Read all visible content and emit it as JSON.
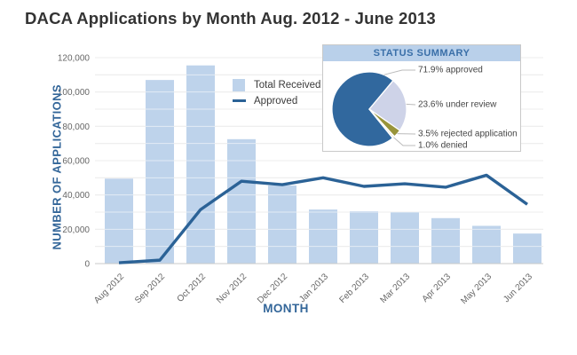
{
  "title": "DACA Applications by Month Aug. 2012 - June 2013",
  "colors": {
    "bar_fill": "#BED3EB",
    "line_stroke": "#2B6296",
    "grid_line": "#D8D8D8",
    "axis_baseline": "#C9C9C9",
    "tick_text": "#666666",
    "axis_title_text": "#336699",
    "title_text": "#333333",
    "inset_header_bg": "#B9D0EA",
    "inset_header_text": "#3A6FA8",
    "inset_border": "#C9C9C9",
    "leader_line": "#BBBBBB"
  },
  "chart_data": [
    {
      "type": "bar",
      "title": "DACA Applications by Month Aug. 2012 - June 2013",
      "categories": [
        "Aug 2012",
        "Sep 2012",
        "Oct 2012",
        "Nov 2012",
        "Dec 2012",
        "Jan 2013",
        "Feb 2013",
        "Mar 2013",
        "Apr 2013",
        "May 2013",
        "Jun 2013"
      ],
      "series": [
        {
          "name": "Total Received",
          "kind": "bar",
          "color": "#BED3EB",
          "values": [
            49500,
            107000,
            115500,
            72500,
            45500,
            31500,
            30500,
            30000,
            26500,
            22000,
            17500
          ]
        },
        {
          "name": "Approved",
          "kind": "line",
          "color": "#2B6296",
          "values": [
            500,
            2000,
            31500,
            48000,
            46000,
            50000,
            45000,
            46500,
            44500,
            51500,
            34500
          ]
        }
      ],
      "xlabel": "MONTH",
      "ylabel": "NUMBER OF APPLICATIONS",
      "ylim": [
        0,
        120000
      ],
      "ytick_step": 20000,
      "grid_step": 10000,
      "grid": true,
      "yticklabels": [
        "0",
        "20,000",
        "40,000",
        "60,000",
        "80,000",
        "100,000",
        "120,000"
      ],
      "legend_position": "inside top, left of inset"
    },
    {
      "type": "pie",
      "title": "STATUS SUMMARY",
      "start_angle_deg": 141,
      "slices": [
        {
          "label": "71.9% approved",
          "value": 71.9,
          "color": "#31689E"
        },
        {
          "label": "23.6% under review",
          "value": 23.6,
          "color": "#CED3E8"
        },
        {
          "label": "3.5% rejected application",
          "value": 3.5,
          "color": "#98943A"
        },
        {
          "label": "1.0% denied",
          "value": 1.0,
          "color": "#EFEFE6"
        }
      ]
    }
  ]
}
